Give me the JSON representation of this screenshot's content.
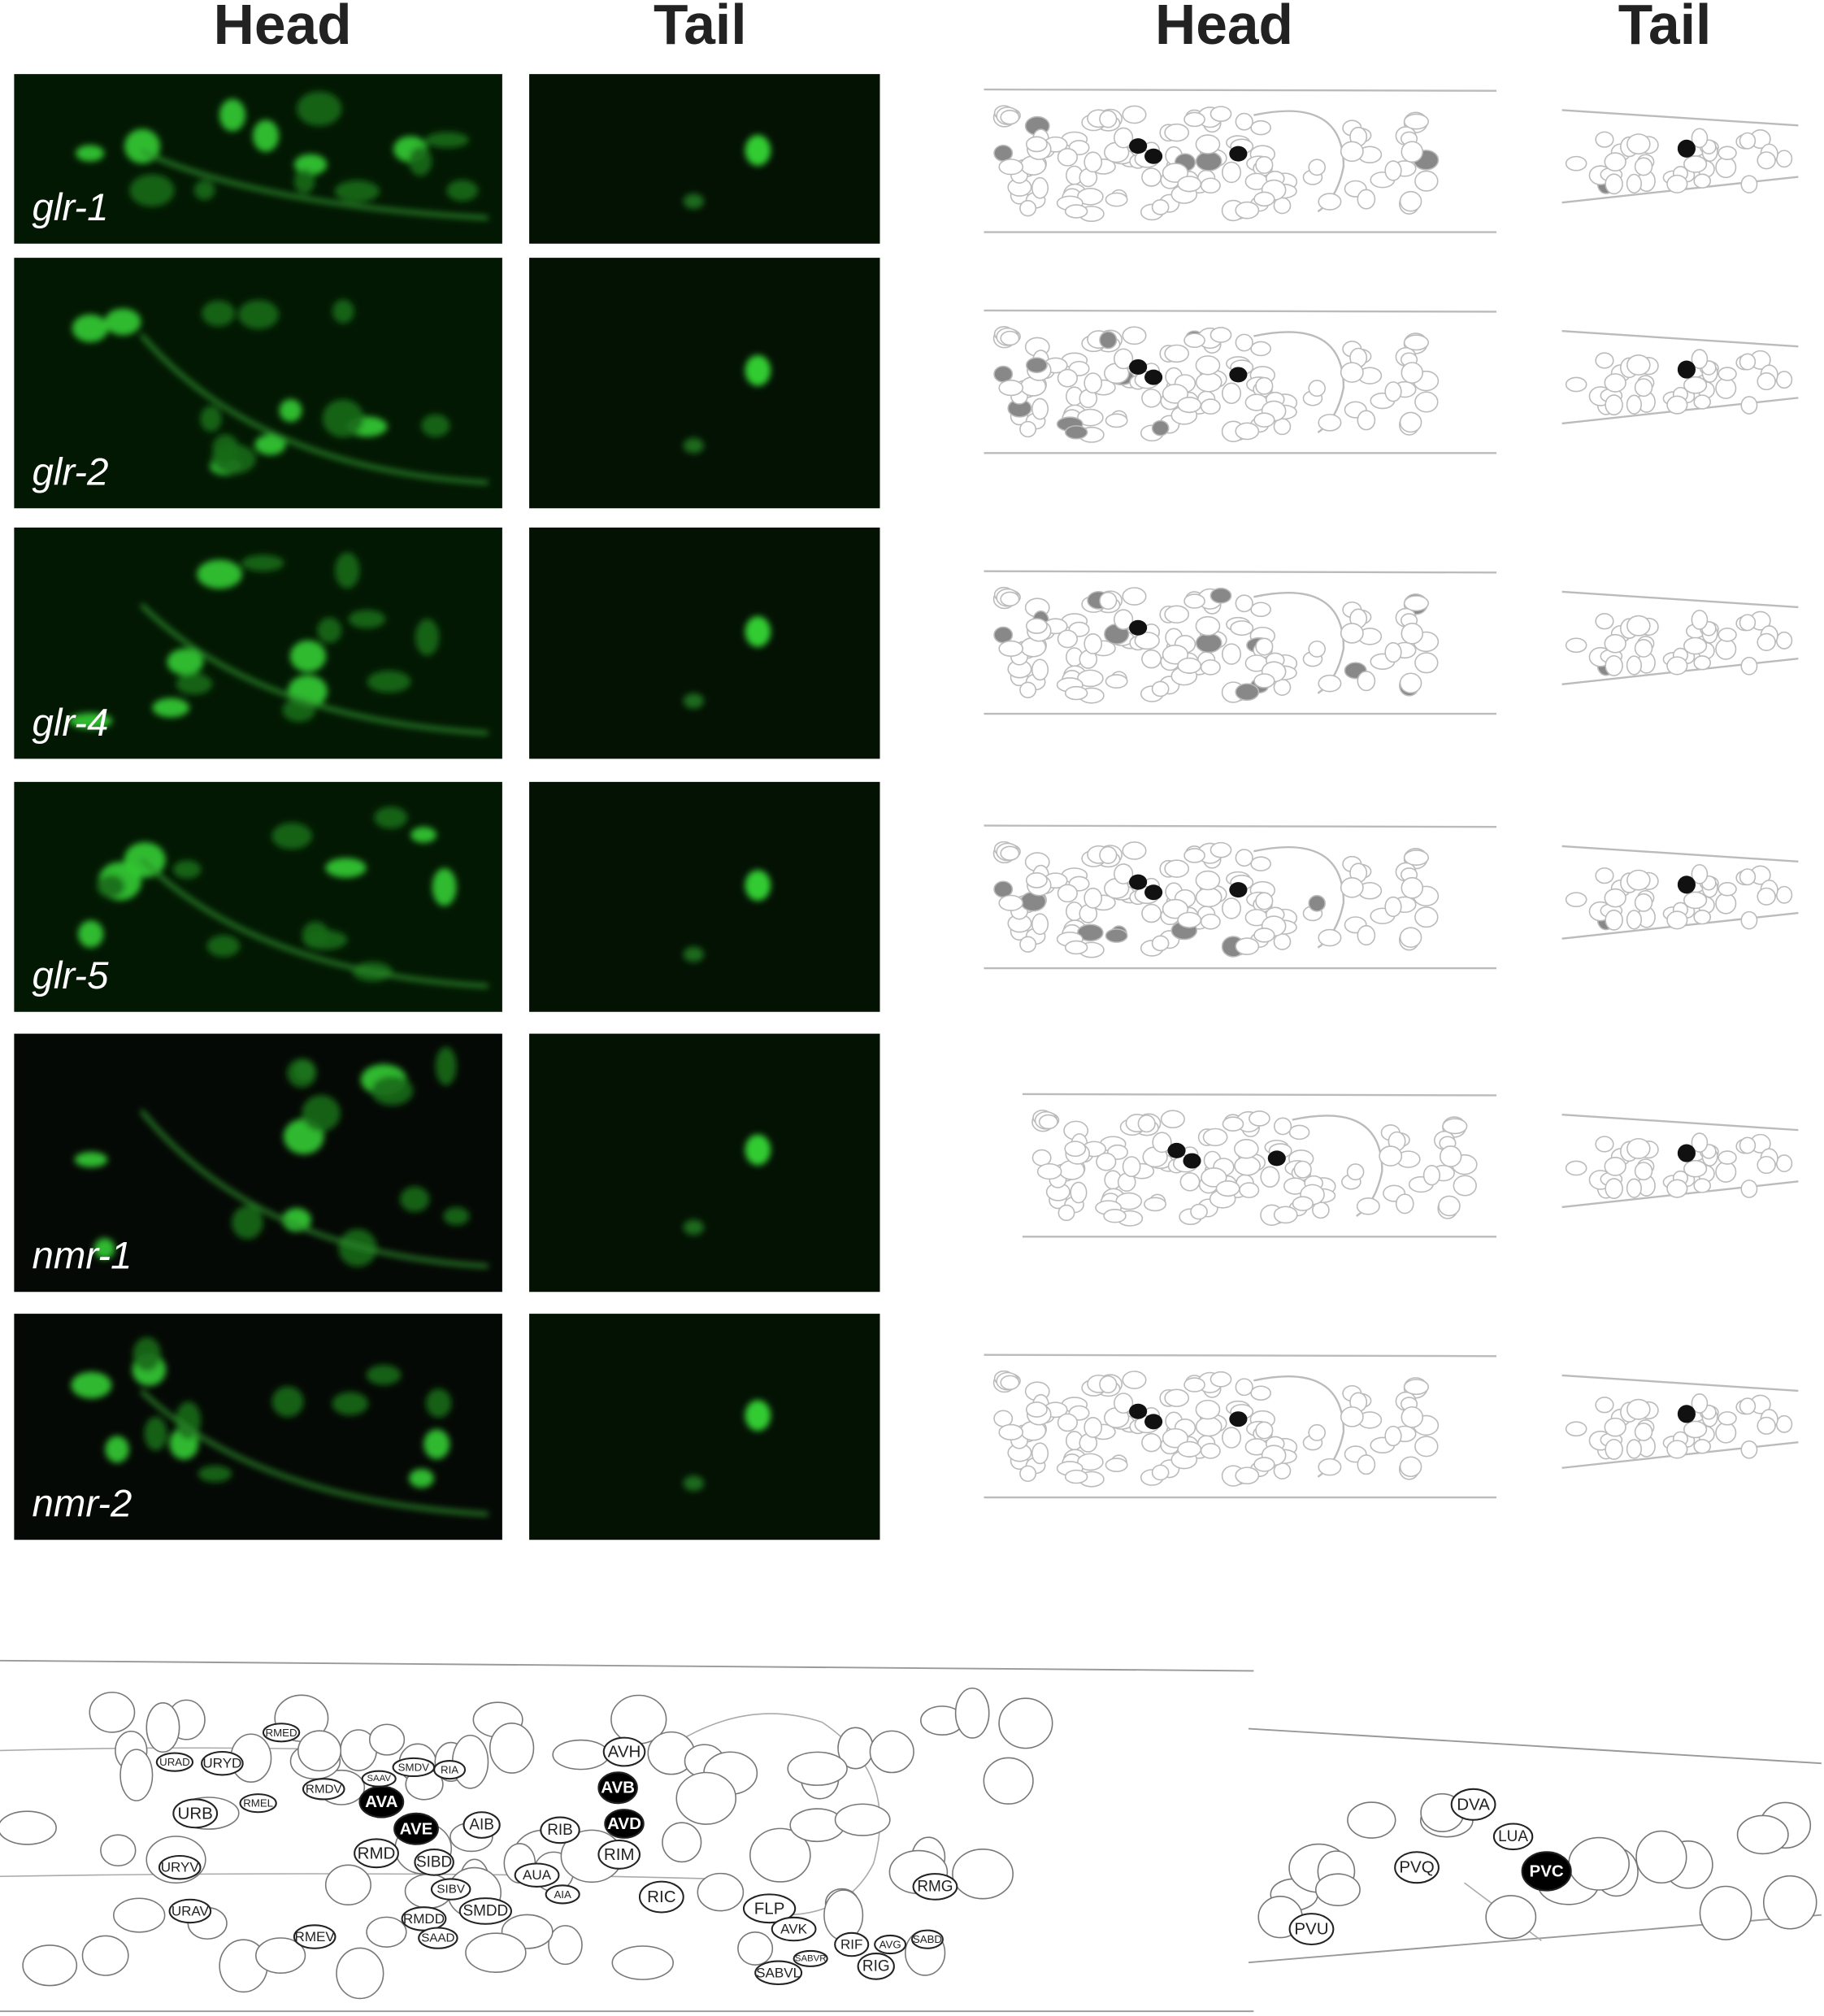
{
  "headers": [
    "Head",
    "Tail",
    "Head",
    "Tail"
  ],
  "rows": [
    "glr-1",
    "glr-2",
    "glr-4",
    "glr-5",
    "nmr-1",
    "nmr-2"
  ],
  "neurons": {
    "head": [
      "RMED",
      "URAD",
      "URYD",
      "RMEL",
      "URB",
      "RMDV",
      "SAAV",
      "SMDV",
      "RIA",
      "AVA",
      "AVE",
      "AVH",
      "AVB",
      "AVD",
      "RIB",
      "AIB",
      "RIM",
      "RMD",
      "SIBD",
      "URYV",
      "SIBV",
      "AUA",
      "AIA",
      "RIC",
      "URAV",
      "RMDD",
      "SMDD",
      "SAAD",
      "RMEV",
      "FLP",
      "AVK",
      "RMG",
      "RIF",
      "AVG",
      "SABD",
      "SABVR",
      "SABVL",
      "RIG"
    ],
    "tail": [
      "DVA",
      "LUA",
      "PVQ",
      "PVC",
      "PVU"
    ]
  }
}
